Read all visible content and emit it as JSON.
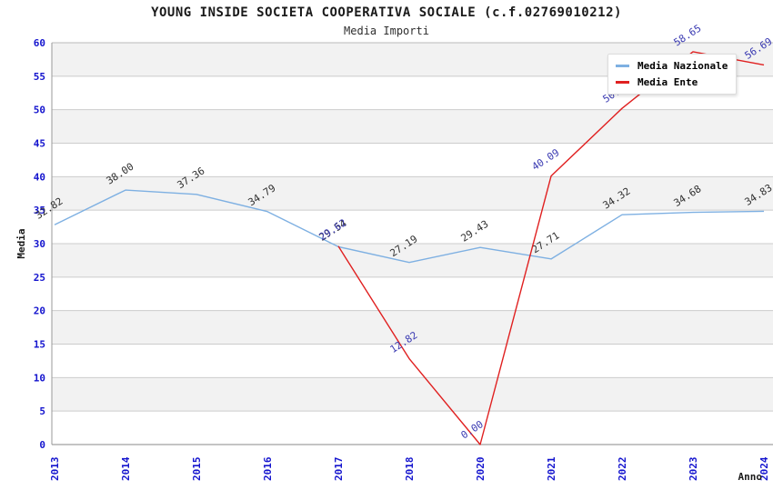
{
  "chart_data": {
    "type": "line",
    "title": "YOUNG INSIDE SOCIETA COOPERATIVA SOCIALE (c.f.02769010212)",
    "subtitle": "Media Importi",
    "xlabel": "Anno",
    "ylabel": "Media",
    "ylim": [
      0,
      60
    ],
    "ytick_step": 5,
    "grid": "horizontal-bands-alternating",
    "legend_position": "top-right",
    "categories": [
      "2013",
      "2014",
      "2015",
      "2016",
      "2017",
      "2018",
      "2020",
      "2021",
      "2022",
      "2023",
      "2024"
    ],
    "series": [
      {
        "name": "Media Nazionale",
        "color": "#7EB0E2",
        "label_color": "#2F2F2F",
        "values": [
          32.82,
          38.0,
          37.36,
          34.79,
          29.54,
          27.19,
          29.43,
          27.71,
          34.32,
          34.68,
          34.83
        ]
      },
      {
        "name": "Media Ente",
        "color": "#E02020",
        "label_color": "#3A3AB2",
        "values": [
          null,
          null,
          null,
          null,
          29.62,
          12.82,
          0.0,
          40.09,
          50.2,
          58.65,
          56.69
        ]
      }
    ]
  },
  "colors": {
    "tick": "#1414CE",
    "band": "#F2F2F2",
    "grid": "#CCCCCC",
    "axis": "#999999",
    "frame_top": "#BBBBBB",
    "background": "#FFFFFF"
  }
}
